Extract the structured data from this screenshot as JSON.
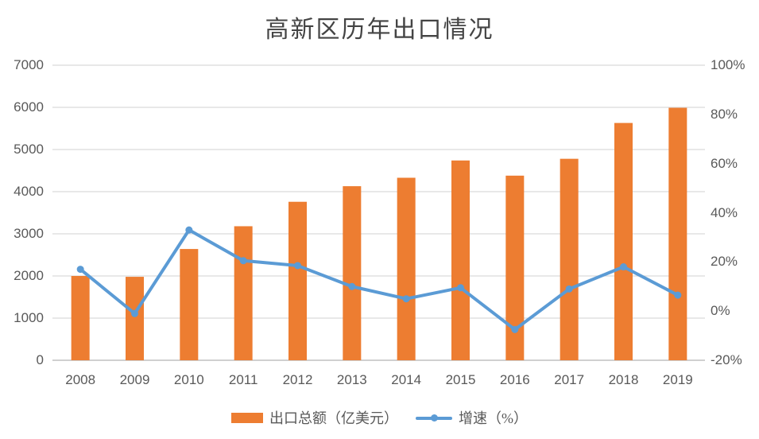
{
  "title": "高新区历年出口情况",
  "legend": {
    "bar_label": "出口总额（亿美元）",
    "line_label": "增速（%）"
  },
  "colors": {
    "bar": "#ED7D31",
    "line": "#5B9BD5",
    "text": "#595959",
    "title_text": "#444444",
    "gridline": "#D9D9D9",
    "axis_line": "#C9C9C9"
  },
  "chart_data": {
    "type": "bar+line-combo",
    "title": "高新区历年出口情况",
    "categories": [
      "2008",
      "2009",
      "2010",
      "2011",
      "2012",
      "2013",
      "2014",
      "2015",
      "2016",
      "2017",
      "2018",
      "2019"
    ],
    "series": [
      {
        "name": "出口总额（亿美元）",
        "type": "bar",
        "axis": "left",
        "values": [
          2000,
          1980,
          2640,
          3180,
          3760,
          4130,
          4330,
          4740,
          4380,
          4780,
          5630,
          5990
        ]
      },
      {
        "name": "增速（%）",
        "type": "line",
        "axis": "right",
        "values": [
          17,
          -1,
          33,
          20.5,
          18.5,
          10,
          5,
          9.5,
          -7.5,
          9,
          18,
          6.5
        ]
      }
    ],
    "left_axis": {
      "min": 0,
      "max": 7000,
      "tick_step": 1000,
      "tick_labels": [
        "0",
        "1000",
        "2000",
        "3000",
        "4000",
        "5000",
        "6000",
        "7000"
      ]
    },
    "right_axis": {
      "min": -20,
      "max": 100,
      "tick_step": 20,
      "tick_labels": [
        "-20%",
        "0%",
        "20%",
        "40%",
        "60%",
        "80%",
        "100%"
      ]
    },
    "grid": "horizontal",
    "legend_position": "bottom"
  }
}
